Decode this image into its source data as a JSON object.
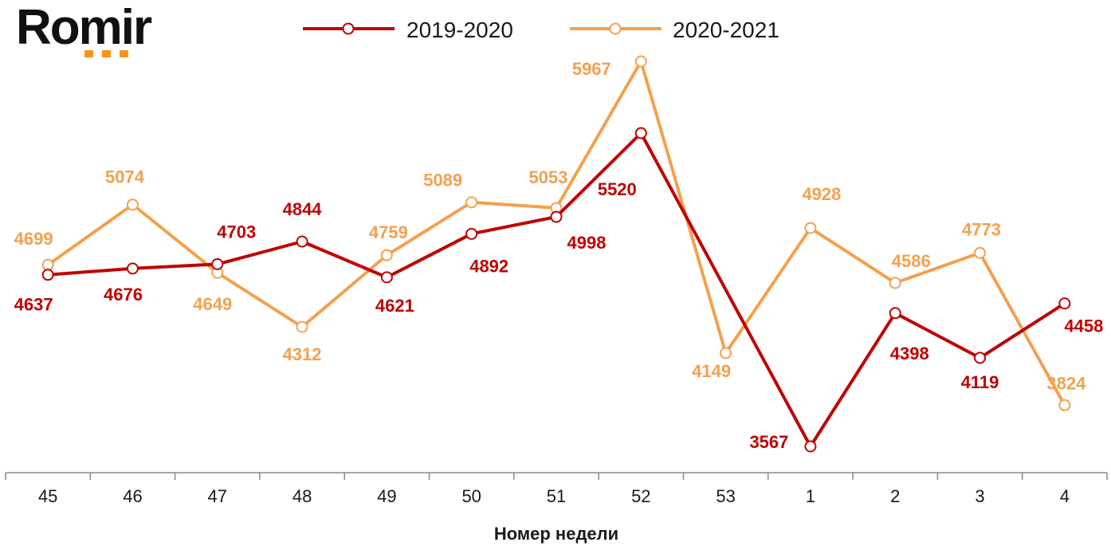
{
  "brand": {
    "name": "Romir",
    "accent_color": "#F7941D"
  },
  "chart_data": {
    "type": "line",
    "xlabel": "Номер недели",
    "ylabel": "",
    "categories": [
      "45",
      "46",
      "47",
      "48",
      "49",
      "50",
      "51",
      "52",
      "53",
      "1",
      "2",
      "3",
      "4"
    ],
    "ylim": [
      3400,
      6100
    ],
    "grid": false,
    "legend_position": "top",
    "series": [
      {
        "name": "2019-2020",
        "color": "#C00000",
        "values": [
          4637,
          4676,
          4703,
          4844,
          4621,
          4892,
          4998,
          5520,
          null,
          3567,
          4398,
          4119,
          4458
        ]
      },
      {
        "name": "2020-2021",
        "color": "#F4A04E",
        "values": [
          4699,
          5074,
          4649,
          4312,
          4759,
          5089,
          5053,
          5967,
          4149,
          4928,
          4586,
          4773,
          3824
        ]
      }
    ]
  }
}
